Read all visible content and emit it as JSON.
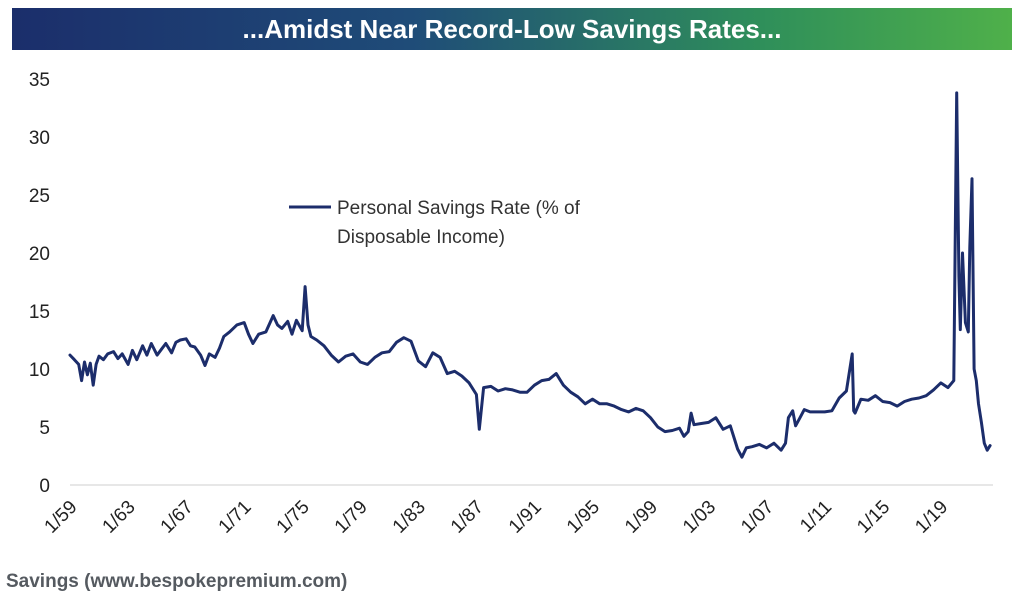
{
  "title": "...Amidst Near Record-Low Savings Rates...",
  "caption": "Savings (www.bespokepremium.com)",
  "colors": {
    "line": "#1c2d6b",
    "banner_start": "#1b2e6b",
    "banner_end": "#4fb04a"
  },
  "chart_data": {
    "type": "line",
    "title": "...Amidst Near Record-Low Savings Rates...",
    "xlabel": "",
    "ylabel": "",
    "ylim": [
      0,
      35
    ],
    "yticks": [
      0,
      5,
      10,
      15,
      20,
      25,
      30,
      35
    ],
    "xlim": [
      1959.0,
      2022.6
    ],
    "xticks": [
      {
        "label": "1/59",
        "x": 1959
      },
      {
        "label": "1/63",
        "x": 1963
      },
      {
        "label": "1/67",
        "x": 1967
      },
      {
        "label": "1/71",
        "x": 1971
      },
      {
        "label": "1/75",
        "x": 1975
      },
      {
        "label": "1/79",
        "x": 1979
      },
      {
        "label": "1/83",
        "x": 1983
      },
      {
        "label": "1/87",
        "x": 1987
      },
      {
        "label": "1/91",
        "x": 1991
      },
      {
        "label": "1/95",
        "x": 1995
      },
      {
        "label": "1/99",
        "x": 1999
      },
      {
        "label": "1/03",
        "x": 2003
      },
      {
        "label": "1/07",
        "x": 2007
      },
      {
        "label": "1/11",
        "x": 2011
      },
      {
        "label": "1/15",
        "x": 2015
      },
      {
        "label": "1/19",
        "x": 2019
      }
    ],
    "legend": "Personal Savings Rate (% of Disposable Income)",
    "legend_lines": [
      "Personal Savings Rate (% of",
      "Disposable Income)"
    ],
    "legend_position": "upper-left",
    "series": [
      {
        "name": "Personal Savings Rate (% of Disposable Income)",
        "x": [
          1959.0,
          1959.3,
          1959.6,
          1959.8,
          1960.0,
          1960.2,
          1960.4,
          1960.6,
          1960.8,
          1961.0,
          1961.3,
          1961.6,
          1962.0,
          1962.3,
          1962.6,
          1963.0,
          1963.3,
          1963.6,
          1964.0,
          1964.3,
          1964.6,
          1965.0,
          1965.3,
          1965.6,
          1966.0,
          1966.3,
          1966.6,
          1967.0,
          1967.3,
          1967.6,
          1968.0,
          1968.3,
          1968.6,
          1969.0,
          1969.3,
          1969.6,
          1970.0,
          1970.5,
          1971.0,
          1971.3,
          1971.6,
          1972.0,
          1972.5,
          1973.0,
          1973.3,
          1973.6,
          1974.0,
          1974.3,
          1974.6,
          1975.0,
          1975.2,
          1975.4,
          1975.6,
          1976.0,
          1976.5,
          1977.0,
          1977.5,
          1978.0,
          1978.5,
          1979.0,
          1979.5,
          1980.0,
          1980.5,
          1981.0,
          1981.5,
          1982.0,
          1982.5,
          1983.0,
          1983.5,
          1984.0,
          1984.5,
          1985.0,
          1985.5,
          1986.0,
          1986.5,
          1987.0,
          1987.2,
          1987.5,
          1988.0,
          1988.5,
          1989.0,
          1989.5,
          1990.0,
          1990.5,
          1991.0,
          1991.5,
          1992.0,
          1992.5,
          1993.0,
          1993.5,
          1994.0,
          1994.5,
          1995.0,
          1995.5,
          1996.0,
          1996.5,
          1997.0,
          1997.5,
          1998.0,
          1998.5,
          1999.0,
          1999.5,
          2000.0,
          2000.5,
          2001.0,
          2001.3,
          2001.6,
          2001.8,
          2002.0,
          2002.5,
          2003.0,
          2003.5,
          2004.0,
          2004.5,
          2005.0,
          2005.3,
          2005.6,
          2006.0,
          2006.5,
          2007.0,
          2007.5,
          2008.0,
          2008.3,
          2008.5,
          2008.8,
          2009.0,
          2009.3,
          2009.6,
          2010.0,
          2010.5,
          2011.0,
          2011.5,
          2012.0,
          2012.5,
          2012.9,
          2013.0,
          2013.1,
          2013.5,
          2014.0,
          2014.5,
          2015.0,
          2015.5,
          2016.0,
          2016.5,
          2017.0,
          2017.5,
          2018.0,
          2018.5,
          2019.0,
          2019.5,
          2019.9,
          2020.1,
          2020.25,
          2020.35,
          2020.5,
          2020.7,
          2020.9,
          2021.0,
          2021.15,
          2021.3,
          2021.45,
          2021.6,
          2021.8,
          2022.0,
          2022.2,
          2022.4
        ],
        "y": [
          11.2,
          10.8,
          10.4,
          9.0,
          10.6,
          9.5,
          10.5,
          8.6,
          10.4,
          11.1,
          10.8,
          11.3,
          11.5,
          10.9,
          11.3,
          10.4,
          11.6,
          10.8,
          12.0,
          11.2,
          12.2,
          11.2,
          11.7,
          12.2,
          11.4,
          12.3,
          12.5,
          12.6,
          12.0,
          11.9,
          11.2,
          10.3,
          11.3,
          11.0,
          11.8,
          12.8,
          13.2,
          13.8,
          14.0,
          13.0,
          12.2,
          13.0,
          13.2,
          14.6,
          13.8,
          13.5,
          14.1,
          13.0,
          14.2,
          13.3,
          17.1,
          13.8,
          12.8,
          12.5,
          12.0,
          11.2,
          10.6,
          11.1,
          11.3,
          10.6,
          10.4,
          11.0,
          11.4,
          11.5,
          12.3,
          12.7,
          12.4,
          10.7,
          10.2,
          11.4,
          11.0,
          9.6,
          9.8,
          9.4,
          8.8,
          7.8,
          4.8,
          8.4,
          8.5,
          8.1,
          8.3,
          8.2,
          8.0,
          8.0,
          8.6,
          9.0,
          9.1,
          9.6,
          8.6,
          8.0,
          7.6,
          7.0,
          7.4,
          7.0,
          7.0,
          6.8,
          6.5,
          6.3,
          6.6,
          6.4,
          5.8,
          5.0,
          4.6,
          4.7,
          4.9,
          4.2,
          4.6,
          6.2,
          5.2,
          5.3,
          5.4,
          5.8,
          4.8,
          5.1,
          3.1,
          2.4,
          3.2,
          3.3,
          3.5,
          3.2,
          3.6,
          3.0,
          3.6,
          5.8,
          6.4,
          5.1,
          5.8,
          6.5,
          6.3,
          6.3,
          6.3,
          6.4,
          7.5,
          8.1,
          11.3,
          6.4,
          6.2,
          7.4,
          7.3,
          7.7,
          7.2,
          7.1,
          6.8,
          7.2,
          7.4,
          7.5,
          7.7,
          8.2,
          8.8,
          8.4,
          9.0,
          33.8,
          18.0,
          13.4,
          20.0,
          14.0,
          13.2,
          20.5,
          26.4,
          10.0,
          9.0,
          7.0,
          5.4,
          3.6,
          3.0,
          3.4
        ]
      }
    ]
  }
}
